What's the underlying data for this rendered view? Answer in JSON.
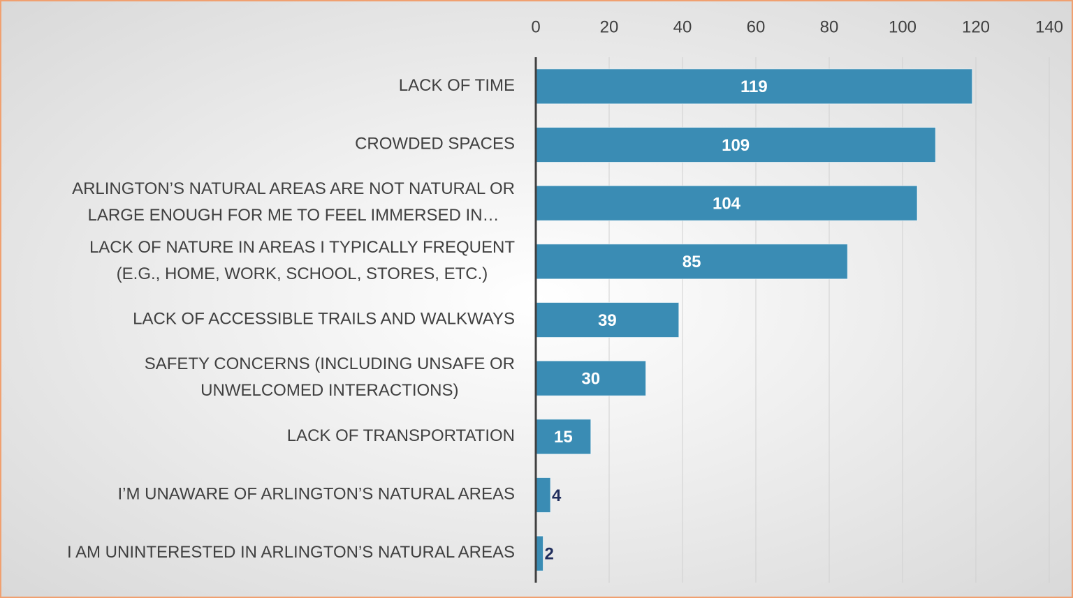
{
  "chart_data": {
    "type": "bar",
    "orientation": "horizontal",
    "categories": [
      "LACK OF TIME",
      "CROWDED SPACES",
      "ARLINGTON’S NATURAL AREAS ARE NOT NATURAL OR\nLARGE ENOUGH FOR ME TO FEEL IMMERSED IN…",
      "LACK OF NATURE IN AREAS I TYPICALLY FREQUENT\n(E.G., HOME, WORK, SCHOOL, STORES, ETC.)",
      "LACK OF ACCESSIBLE TRAILS AND WALKWAYS",
      "SAFETY CONCERNS (INCLUDING UNSAFE OR\nUNWELCOMED INTERACTIONS)",
      "LACK OF TRANSPORTATION",
      "I’M UNAWARE OF ARLINGTON’S NATURAL AREAS",
      "I AM UNINTERESTED IN ARLINGTON’S NATURAL AREAS"
    ],
    "values": [
      119,
      109,
      104,
      85,
      39,
      30,
      15,
      4,
      2
    ],
    "color": "#3a8cb4",
    "xlim": [
      0,
      140
    ],
    "xticks": [
      0,
      20,
      40,
      60,
      80,
      100,
      120,
      140
    ],
    "grid": true,
    "xaxis_position": "top"
  }
}
